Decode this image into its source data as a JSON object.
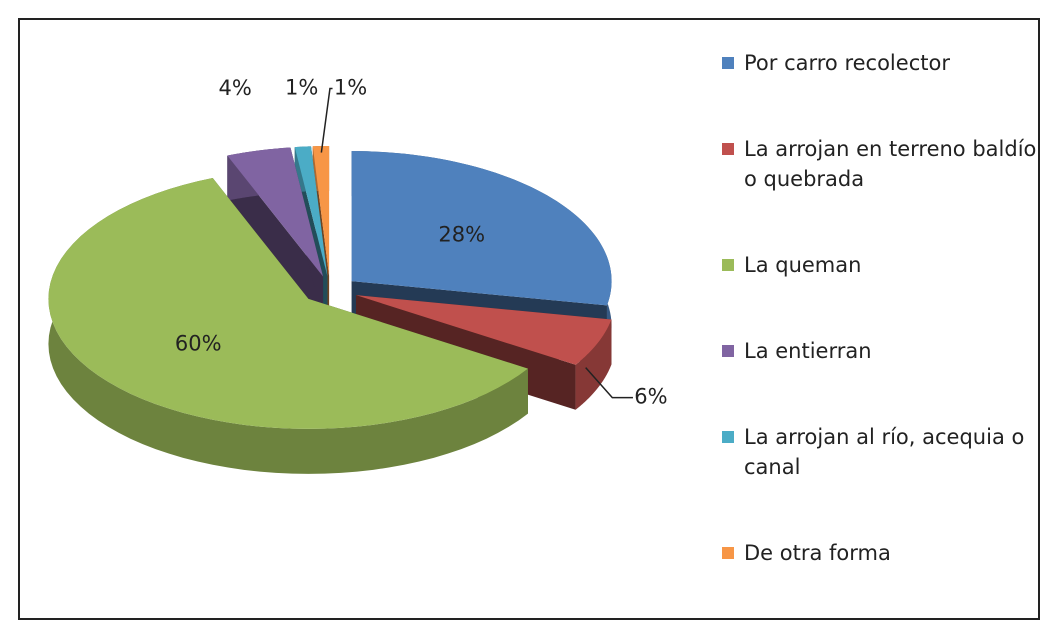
{
  "chart_data": {
    "type": "pie",
    "categories": [
      "Por carro recolector",
      "La arrojan en terreno baldío o quebrada",
      "La queman",
      "La entierran",
      "La arrojan al río, acequia o canal",
      "De otra forma"
    ],
    "values": [
      28,
      6,
      60,
      4,
      1,
      1
    ],
    "value_labels": [
      "28%",
      "6%",
      "60%",
      "4%",
      "1%",
      "1%"
    ],
    "colors": [
      "#4f81bd",
      "#c0504d",
      "#9bbb59",
      "#8064a2",
      "#4bacc6",
      "#f79646"
    ],
    "legend": "right"
  }
}
